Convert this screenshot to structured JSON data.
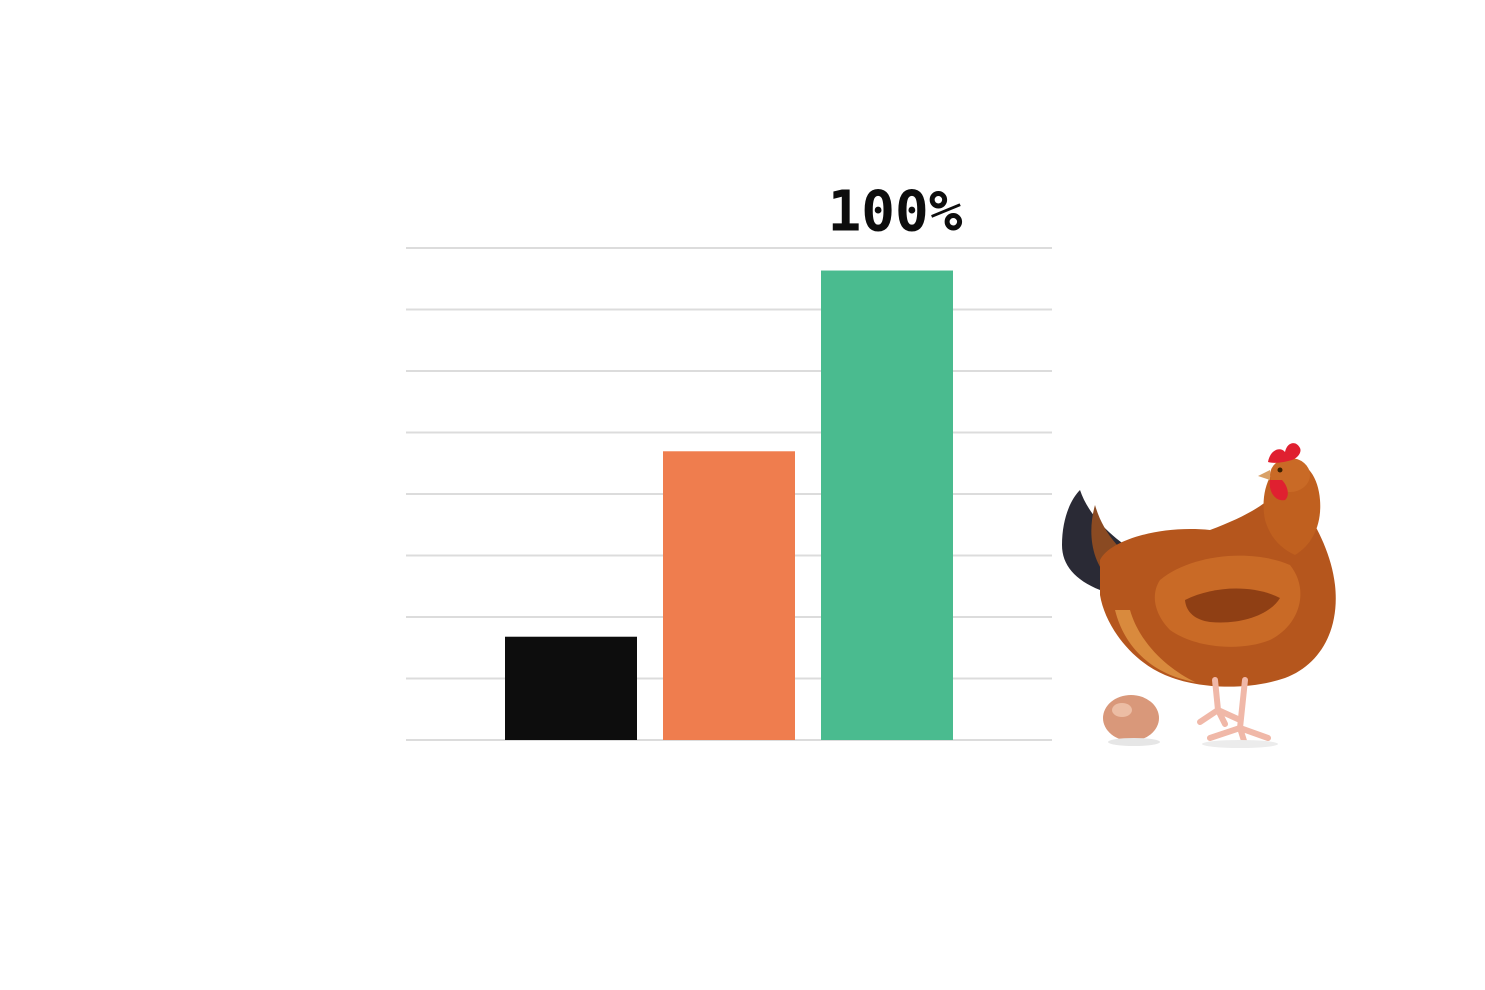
{
  "chart_data": {
    "type": "bar",
    "categories": [
      "",
      "",
      ""
    ],
    "values": [
      22,
      61.5,
      100
    ],
    "colors": [
      "#0d0d0d",
      "#ef7d4e",
      "#4abb8f"
    ],
    "data_labels": [
      "",
      "",
      "100%"
    ],
    "ylim": [
      0,
      104.8
    ],
    "grid": true,
    "gridline_count": 9,
    "title": "",
    "xlabel": "",
    "ylabel": "",
    "legend": "none"
  },
  "illustration": {
    "subject": "hen-with-egg",
    "colors": {
      "feathers": "#b5561d",
      "feathers_light": "#d98a3d",
      "tail": "#2a2a35",
      "comb": "#e02030",
      "legs": "#f0b8a8",
      "egg": "#d9987a"
    }
  }
}
